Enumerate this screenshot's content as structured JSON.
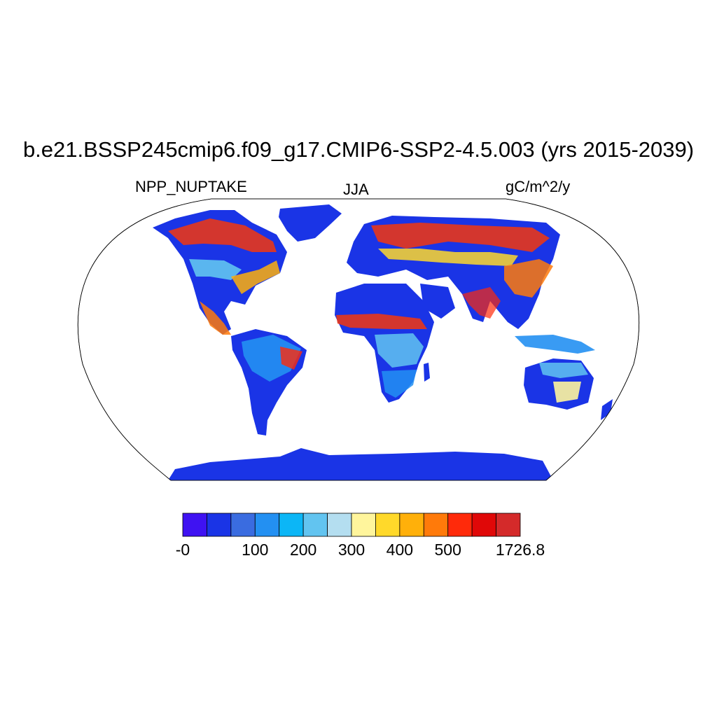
{
  "title": "b.e21.BSSP245cmip6.f09_g17.CMIP6-SSP2-4.5.003 (yrs 2015-2039)",
  "left_string": "NPP_NUPTAKE",
  "center_string": "JJA",
  "right_string": "gC/m^2/y",
  "colors": {
    "ocean": "#ffffff",
    "outline": "#000000"
  },
  "colorbar": {
    "colors": [
      "#3f12f2",
      "#1a34e6",
      "#3a6ce0",
      "#2390f2",
      "#0cb6f6",
      "#62c4f0",
      "#b4def0",
      "#fff59c",
      "#ffd92a",
      "#ffb00a",
      "#ff7a0a",
      "#ff2a0a",
      "#e00808",
      "#d42a2a"
    ],
    "labels": [
      "-0",
      "100",
      "200",
      "300",
      "400",
      "500",
      "1726.8"
    ]
  }
}
